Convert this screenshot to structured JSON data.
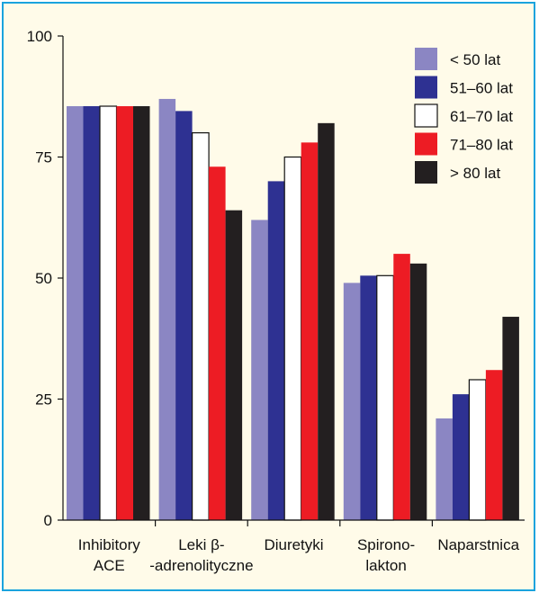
{
  "chart_data": {
    "type": "bar",
    "title": "",
    "xlabel": "",
    "ylabel": "",
    "ylim": [
      0,
      100
    ],
    "yticks": [
      "0",
      "25",
      "50",
      "75",
      "100"
    ],
    "grid": false,
    "legend_position": "top-right",
    "categories": [
      [
        "Inhibitory",
        "ACE"
      ],
      [
        "Leki β-",
        "-adrenolityczne"
      ],
      [
        "Diuretyki"
      ],
      [
        "Spirono-",
        "lakton"
      ],
      [
        "Naparstnica"
      ]
    ],
    "series": [
      {
        "name": "< 50 lat",
        "color": "#8b86c3",
        "values": [
          85.5,
          87,
          62,
          49,
          21
        ]
      },
      {
        "name": "51–60 lat",
        "color": "#2e3192",
        "values": [
          85.5,
          84.5,
          70,
          50.5,
          26
        ]
      },
      {
        "name": "61–70 lat",
        "color": "#ffffff",
        "values": [
          85.5,
          80,
          75,
          50.5,
          29
        ]
      },
      {
        "name": "71–80 lat",
        "color": "#ed1c24",
        "values": [
          85.5,
          73,
          78,
          55,
          31
        ]
      },
      {
        "name": "> 80 lat",
        "color": "#231f20",
        "values": [
          85.5,
          64,
          82,
          53,
          42
        ]
      }
    ]
  },
  "colors": {
    "frame_border": "#1ba3dd",
    "background": "#fffbe9",
    "axis": "#111111"
  }
}
